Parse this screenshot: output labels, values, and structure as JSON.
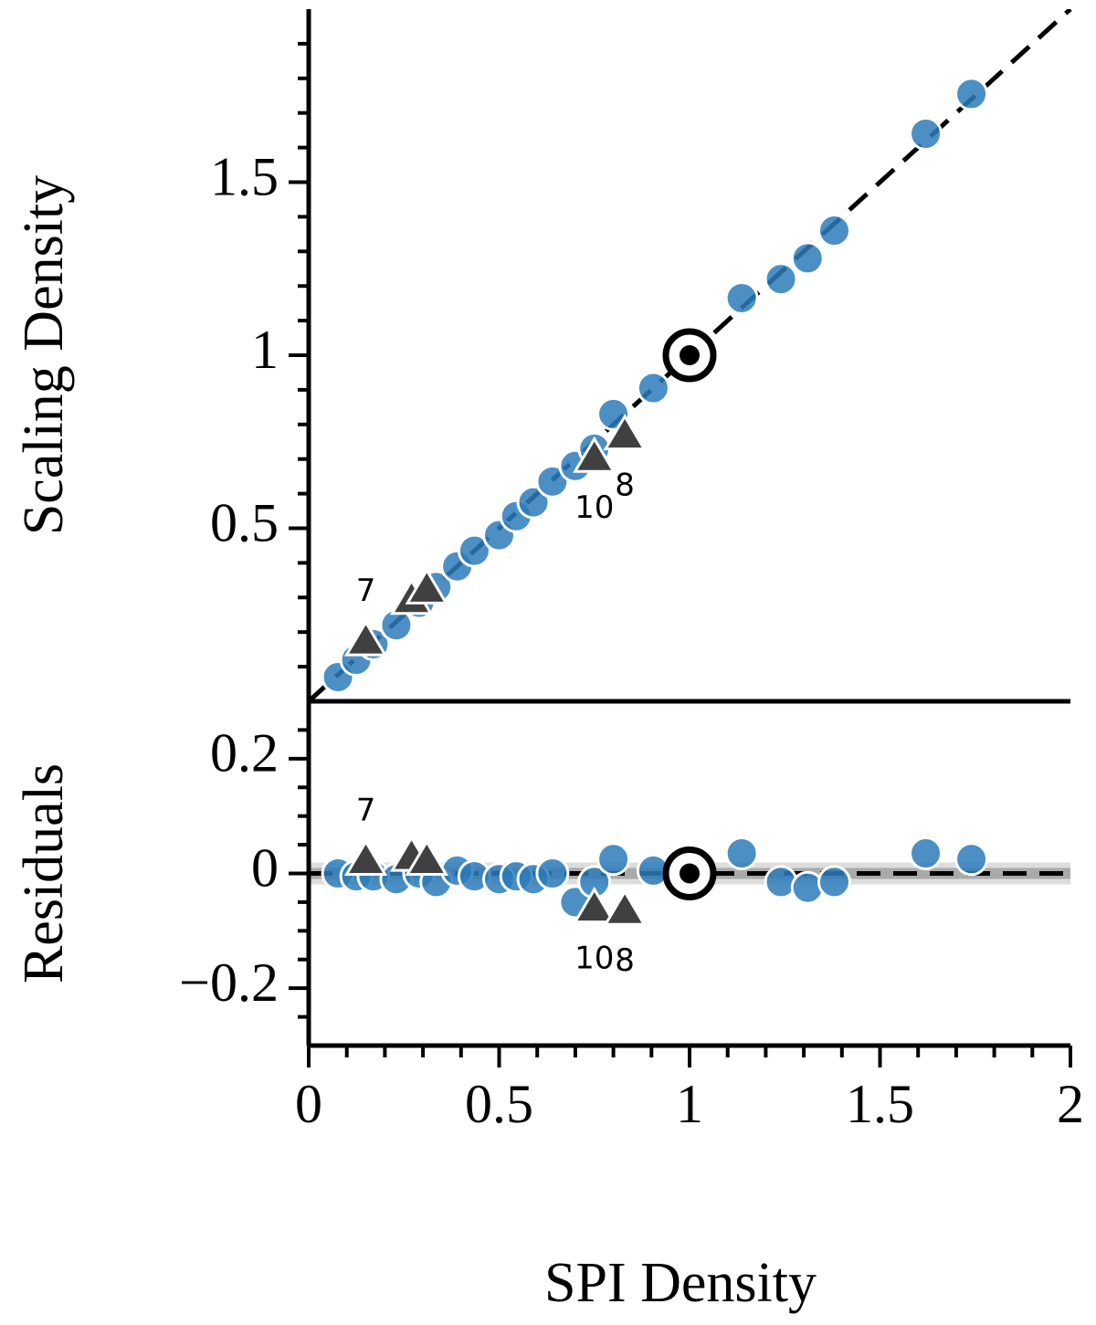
{
  "chart_data": [
    {
      "type": "scatter",
      "ylabel": "Scaling Density",
      "xlim": [
        0,
        2
      ],
      "ylim": [
        0,
        2
      ],
      "yticks": [
        0.5,
        1,
        1.5
      ],
      "minor_yticks": [
        0.1,
        0.2,
        0.3,
        0.4,
        0.6,
        0.7,
        0.8,
        0.9,
        1.1,
        1.2,
        1.3,
        1.4,
        1.6,
        1.7,
        1.8,
        1.9
      ],
      "reference_line": "y=x",
      "series": [
        {
          "marker": "circle",
          "color": "#2b7bba",
          "x": [
            0.077,
            0.125,
            0.17,
            0.23,
            0.29,
            0.335,
            0.39,
            0.435,
            0.5,
            0.545,
            0.59,
            0.64,
            0.7,
            0.75,
            0.8,
            0.905,
            1.137,
            1.24,
            1.31,
            1.38,
            1.62,
            1.74
          ],
          "values": [
            0.07,
            0.12,
            0.165,
            0.22,
            0.285,
            0.33,
            0.39,
            0.435,
            0.48,
            0.535,
            0.575,
            0.635,
            0.68,
            0.73,
            0.83,
            0.905,
            1.165,
            1.22,
            1.28,
            1.36,
            1.64,
            1.755
          ]
        },
        {
          "marker": "triangle",
          "color": "#404040",
          "x": [
            0.15,
            0.27,
            0.31,
            0.75,
            0.83
          ],
          "values": [
            0.17,
            0.29,
            0.32,
            0.7,
            0.765
          ],
          "point_labels": [
            "7",
            null,
            null,
            "10",
            "8"
          ]
        },
        {
          "marker": "target",
          "color": "#000000",
          "x": [
            1
          ],
          "values": [
            1
          ]
        }
      ]
    },
    {
      "type": "scatter",
      "ylabel": "Residuals",
      "xlabel": "SPI Density",
      "xlim": [
        0,
        2
      ],
      "ylim": [
        -0.3,
        0.3
      ],
      "xticks": [
        0,
        0.5,
        1,
        1.5,
        2
      ],
      "minor_xticks": [
        0.1,
        0.2,
        0.3,
        0.4,
        0.6,
        0.7,
        0.8,
        0.9,
        1.1,
        1.2,
        1.3,
        1.4,
        1.6,
        1.7,
        1.8,
        1.9
      ],
      "yticks": [
        {
          "value": -0.2,
          "label": "−0.2"
        },
        0,
        0.2
      ],
      "minor_yticks": [
        -0.25,
        -0.15,
        -0.1,
        -0.05,
        0.05,
        0.1,
        0.15,
        0.25
      ],
      "reference_line": "y=0",
      "series": [
        {
          "marker": "circle",
          "color": "#2b7bba",
          "x": [
            0.077,
            0.125,
            0.17,
            0.23,
            0.29,
            0.335,
            0.39,
            0.435,
            0.5,
            0.545,
            0.59,
            0.64,
            0.7,
            0.75,
            0.8,
            0.905,
            1.137,
            1.24,
            1.31,
            1.38,
            1.62,
            1.74
          ],
          "values": [
            0,
            -0.005,
            -0.005,
            -0.01,
            0,
            -0.015,
            0.005,
            -0.005,
            -0.01,
            -0.005,
            -0.01,
            0,
            -0.05,
            -0.015,
            0.025,
            0.005,
            0.035,
            -0.015,
            -0.025,
            -0.015,
            0.035,
            0.025
          ]
        },
        {
          "marker": "triangle",
          "color": "#404040",
          "x": [
            0.15,
            0.27,
            0.31,
            0.75,
            0.83
          ],
          "values": [
            0.02,
            0.027,
            0.02,
            -0.063,
            -0.067
          ],
          "point_labels": [
            "7",
            null,
            null,
            "10",
            "8"
          ]
        },
        {
          "marker": "target",
          "color": "#000000",
          "x": [
            1
          ],
          "values": [
            0
          ]
        }
      ]
    }
  ]
}
